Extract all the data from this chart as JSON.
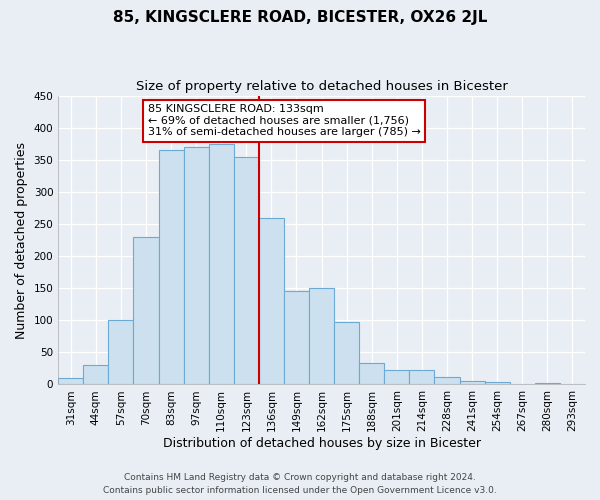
{
  "title": "85, KINGSCLERE ROAD, BICESTER, OX26 2JL",
  "subtitle": "Size of property relative to detached houses in Bicester",
  "xlabel": "Distribution of detached houses by size in Bicester",
  "ylabel": "Number of detached properties",
  "bar_labels": [
    "31sqm",
    "44sqm",
    "57sqm",
    "70sqm",
    "83sqm",
    "97sqm",
    "110sqm",
    "123sqm",
    "136sqm",
    "149sqm",
    "162sqm",
    "175sqm",
    "188sqm",
    "201sqm",
    "214sqm",
    "228sqm",
    "241sqm",
    "254sqm",
    "267sqm",
    "280sqm",
    "293sqm"
  ],
  "bar_values": [
    10,
    30,
    100,
    230,
    365,
    370,
    375,
    355,
    260,
    145,
    150,
    97,
    33,
    22,
    23,
    11,
    5,
    4,
    1,
    2,
    1
  ],
  "bar_color": "#cce0f0",
  "bar_edge_color": "#6aaad4",
  "vline_color": "#cc0000",
  "annotation_title": "85 KINGSCLERE ROAD: 133sqm",
  "annotation_line1": "← 69% of detached houses are smaller (1,756)",
  "annotation_line2": "31% of semi-detached houses are larger (785) →",
  "annotation_box_facecolor": "#ffffff",
  "annotation_box_edgecolor": "#cc0000",
  "ylim": [
    0,
    450
  ],
  "yticks": [
    0,
    50,
    100,
    150,
    200,
    250,
    300,
    350,
    400,
    450
  ],
  "footer1": "Contains HM Land Registry data © Crown copyright and database right 2024.",
  "footer2": "Contains public sector information licensed under the Open Government Licence v3.0.",
  "bg_color": "#e8eef4",
  "grid_color": "#d0d8e0",
  "title_fontsize": 11,
  "subtitle_fontsize": 9.5,
  "axis_label_fontsize": 9,
  "tick_fontsize": 7.5,
  "annotation_fontsize": 8,
  "footer_fontsize": 6.5
}
